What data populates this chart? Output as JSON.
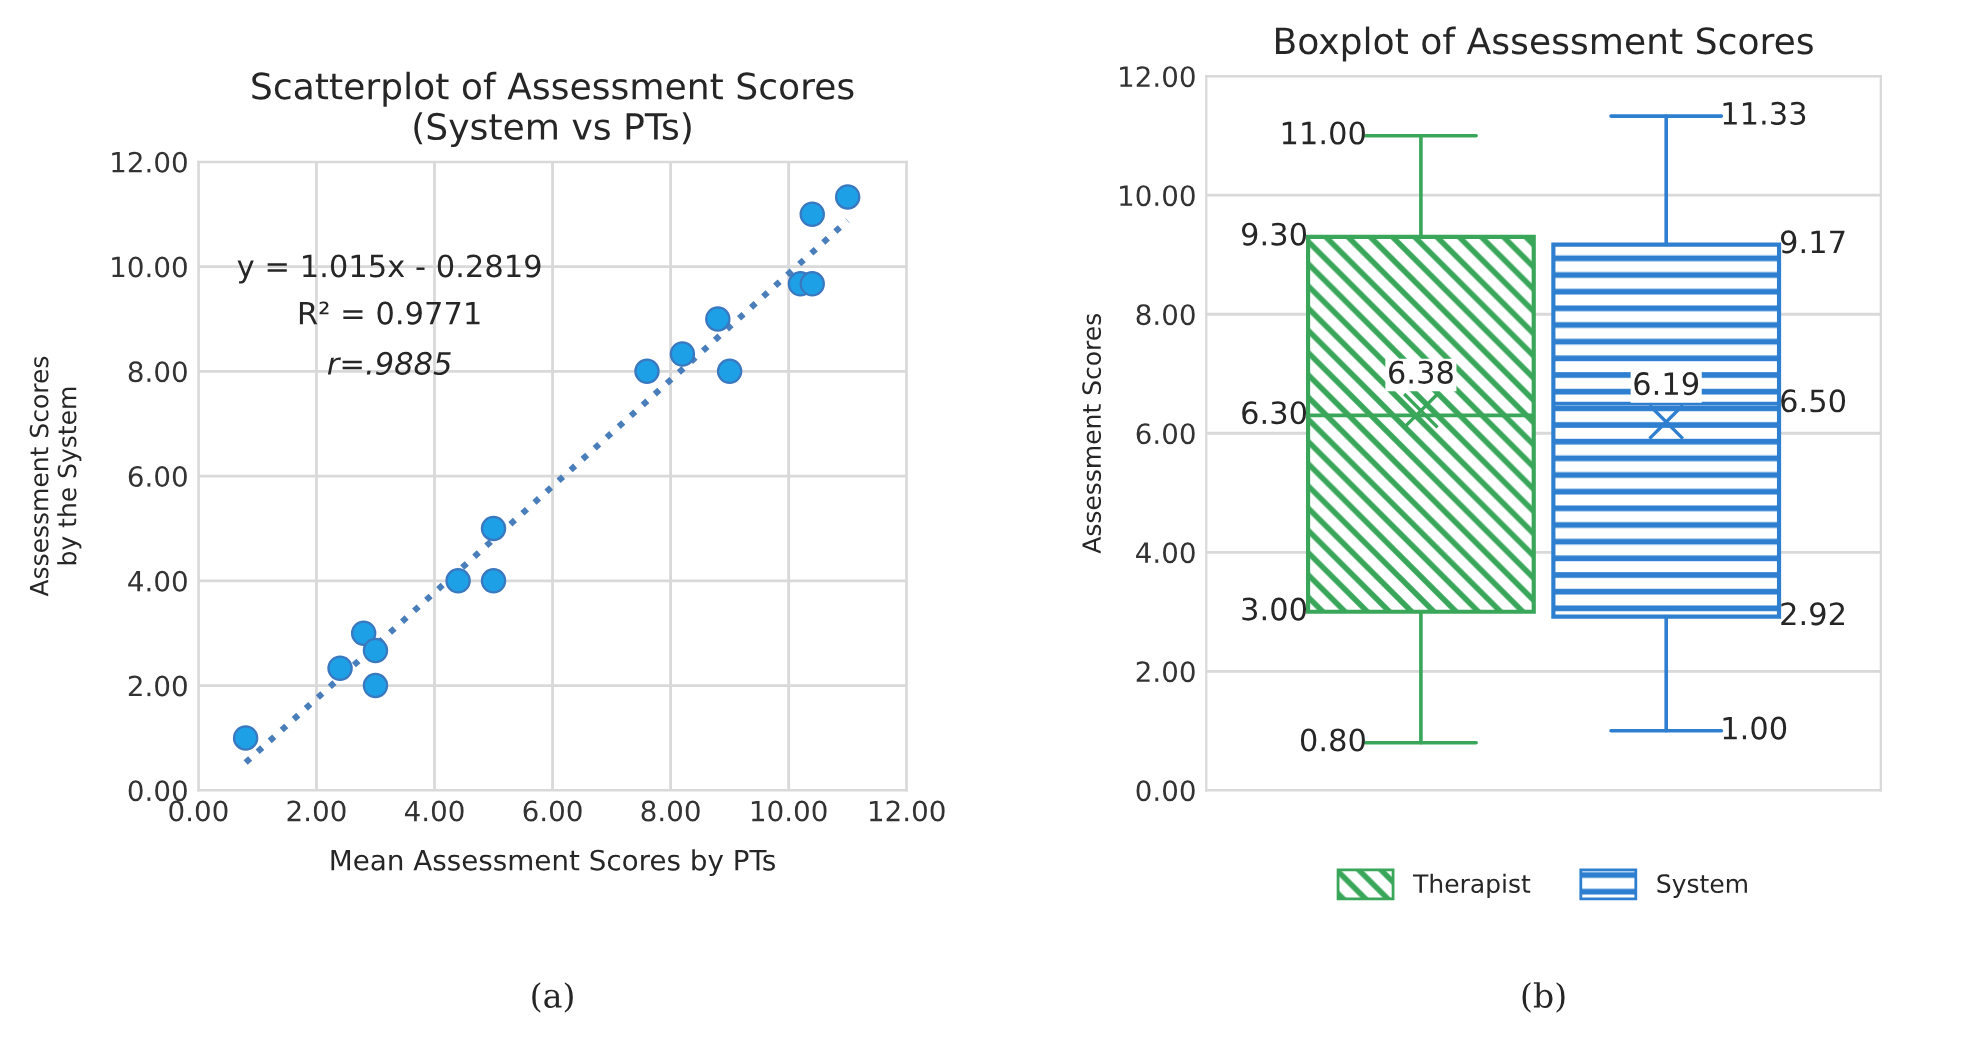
{
  "chart_data": [
    {
      "type": "scatter",
      "title": "Scatterplot of Assessment Scores\n(System vs PTs)",
      "xlabel": "Mean Assessment Scores by PTs",
      "ylabel": "Assessment Scores\nby the System",
      "series": [
        {
          "type": "scatter",
          "color": "#1ea0e6",
          "marker": "circle",
          "x": [
            0.8,
            2.4,
            2.8,
            3.0,
            3.0,
            4.4,
            5.0,
            5.0,
            7.6,
            8.2,
            8.8,
            9.0,
            10.2,
            10.4,
            10.4,
            11.0
          ],
          "values": [
            1.0,
            2.33,
            3.0,
            2.67,
            2.0,
            4.0,
            4.0,
            5.0,
            8.0,
            8.33,
            9.0,
            8.0,
            9.67,
            9.67,
            11.0,
            11.33
          ]
        },
        {
          "type": "line",
          "color": "#4a7ebb",
          "line_style": "dotted",
          "marker": "none",
          "x": [
            0.8,
            11.0
          ],
          "values": [
            0.53,
            10.88
          ]
        }
      ],
      "xlim": [
        0,
        12
      ],
      "ylim": [
        0,
        12
      ],
      "xticks": [
        {
          "value": 0,
          "label": "0.00"
        },
        {
          "value": 2,
          "label": "2.00"
        },
        {
          "value": 4,
          "label": "4.00"
        },
        {
          "value": 6,
          "label": "6.00"
        },
        {
          "value": 8,
          "label": "8.00"
        },
        {
          "value": 10,
          "label": "10.00"
        },
        {
          "value": 12,
          "label": "12.00"
        }
      ],
      "yticks": [
        {
          "value": 0,
          "label": "0.00"
        },
        {
          "value": 2,
          "label": "2.00"
        },
        {
          "value": 4,
          "label": "4.00"
        },
        {
          "value": 6,
          "label": "6.00"
        },
        {
          "value": 8,
          "label": "8.00"
        },
        {
          "value": 10,
          "label": "10.00"
        },
        {
          "value": 12,
          "label": "12.00"
        }
      ],
      "grid": true,
      "annotations": [
        "y = 1.015x - 0.2819",
        "R² = 0.9771",
        "r=.9885",
        "(a)"
      ]
    },
    {
      "type": "box",
      "title": "Boxplot of Assessment Scores",
      "ylabel": "Assessment Scores",
      "categories": [
        null
      ],
      "series": [
        {
          "name": "Therapist",
          "color": "#3aa65a",
          "boxes": [
            {
              "low": 0.8,
              "q1": 3.0,
              "median": 6.3,
              "q3": 9.3,
              "high": 11.0,
              "mean": 6.38
            }
          ]
        },
        {
          "name": "System",
          "color": "#2e7fcf",
          "boxes": [
            {
              "low": 1.0,
              "q1": 2.92,
              "median": 6.5,
              "q3": 9.17,
              "high": 11.33,
              "mean": 6.19
            }
          ]
        }
      ],
      "ylim": [
        0,
        12
      ],
      "yticks": [
        {
          "value": 0,
          "label": "0.00"
        },
        {
          "value": 2,
          "label": "2.00"
        },
        {
          "value": 4,
          "label": "4.00"
        },
        {
          "value": 6,
          "label": "6.00"
        },
        {
          "value": 8,
          "label": "8.00"
        },
        {
          "value": 10,
          "label": "10.00"
        },
        {
          "value": 12,
          "label": "12.00"
        }
      ],
      "grid": "y",
      "legend": "bottom",
      "tick_labels": "y",
      "annotations": [
        "0.80",
        "3.00",
        "6.30",
        "9.30",
        "11.00",
        "6.38",
        "1.00",
        "2.92",
        "6.50",
        "9.17",
        "11.33",
        "6.19",
        "(b)"
      ]
    }
  ]
}
